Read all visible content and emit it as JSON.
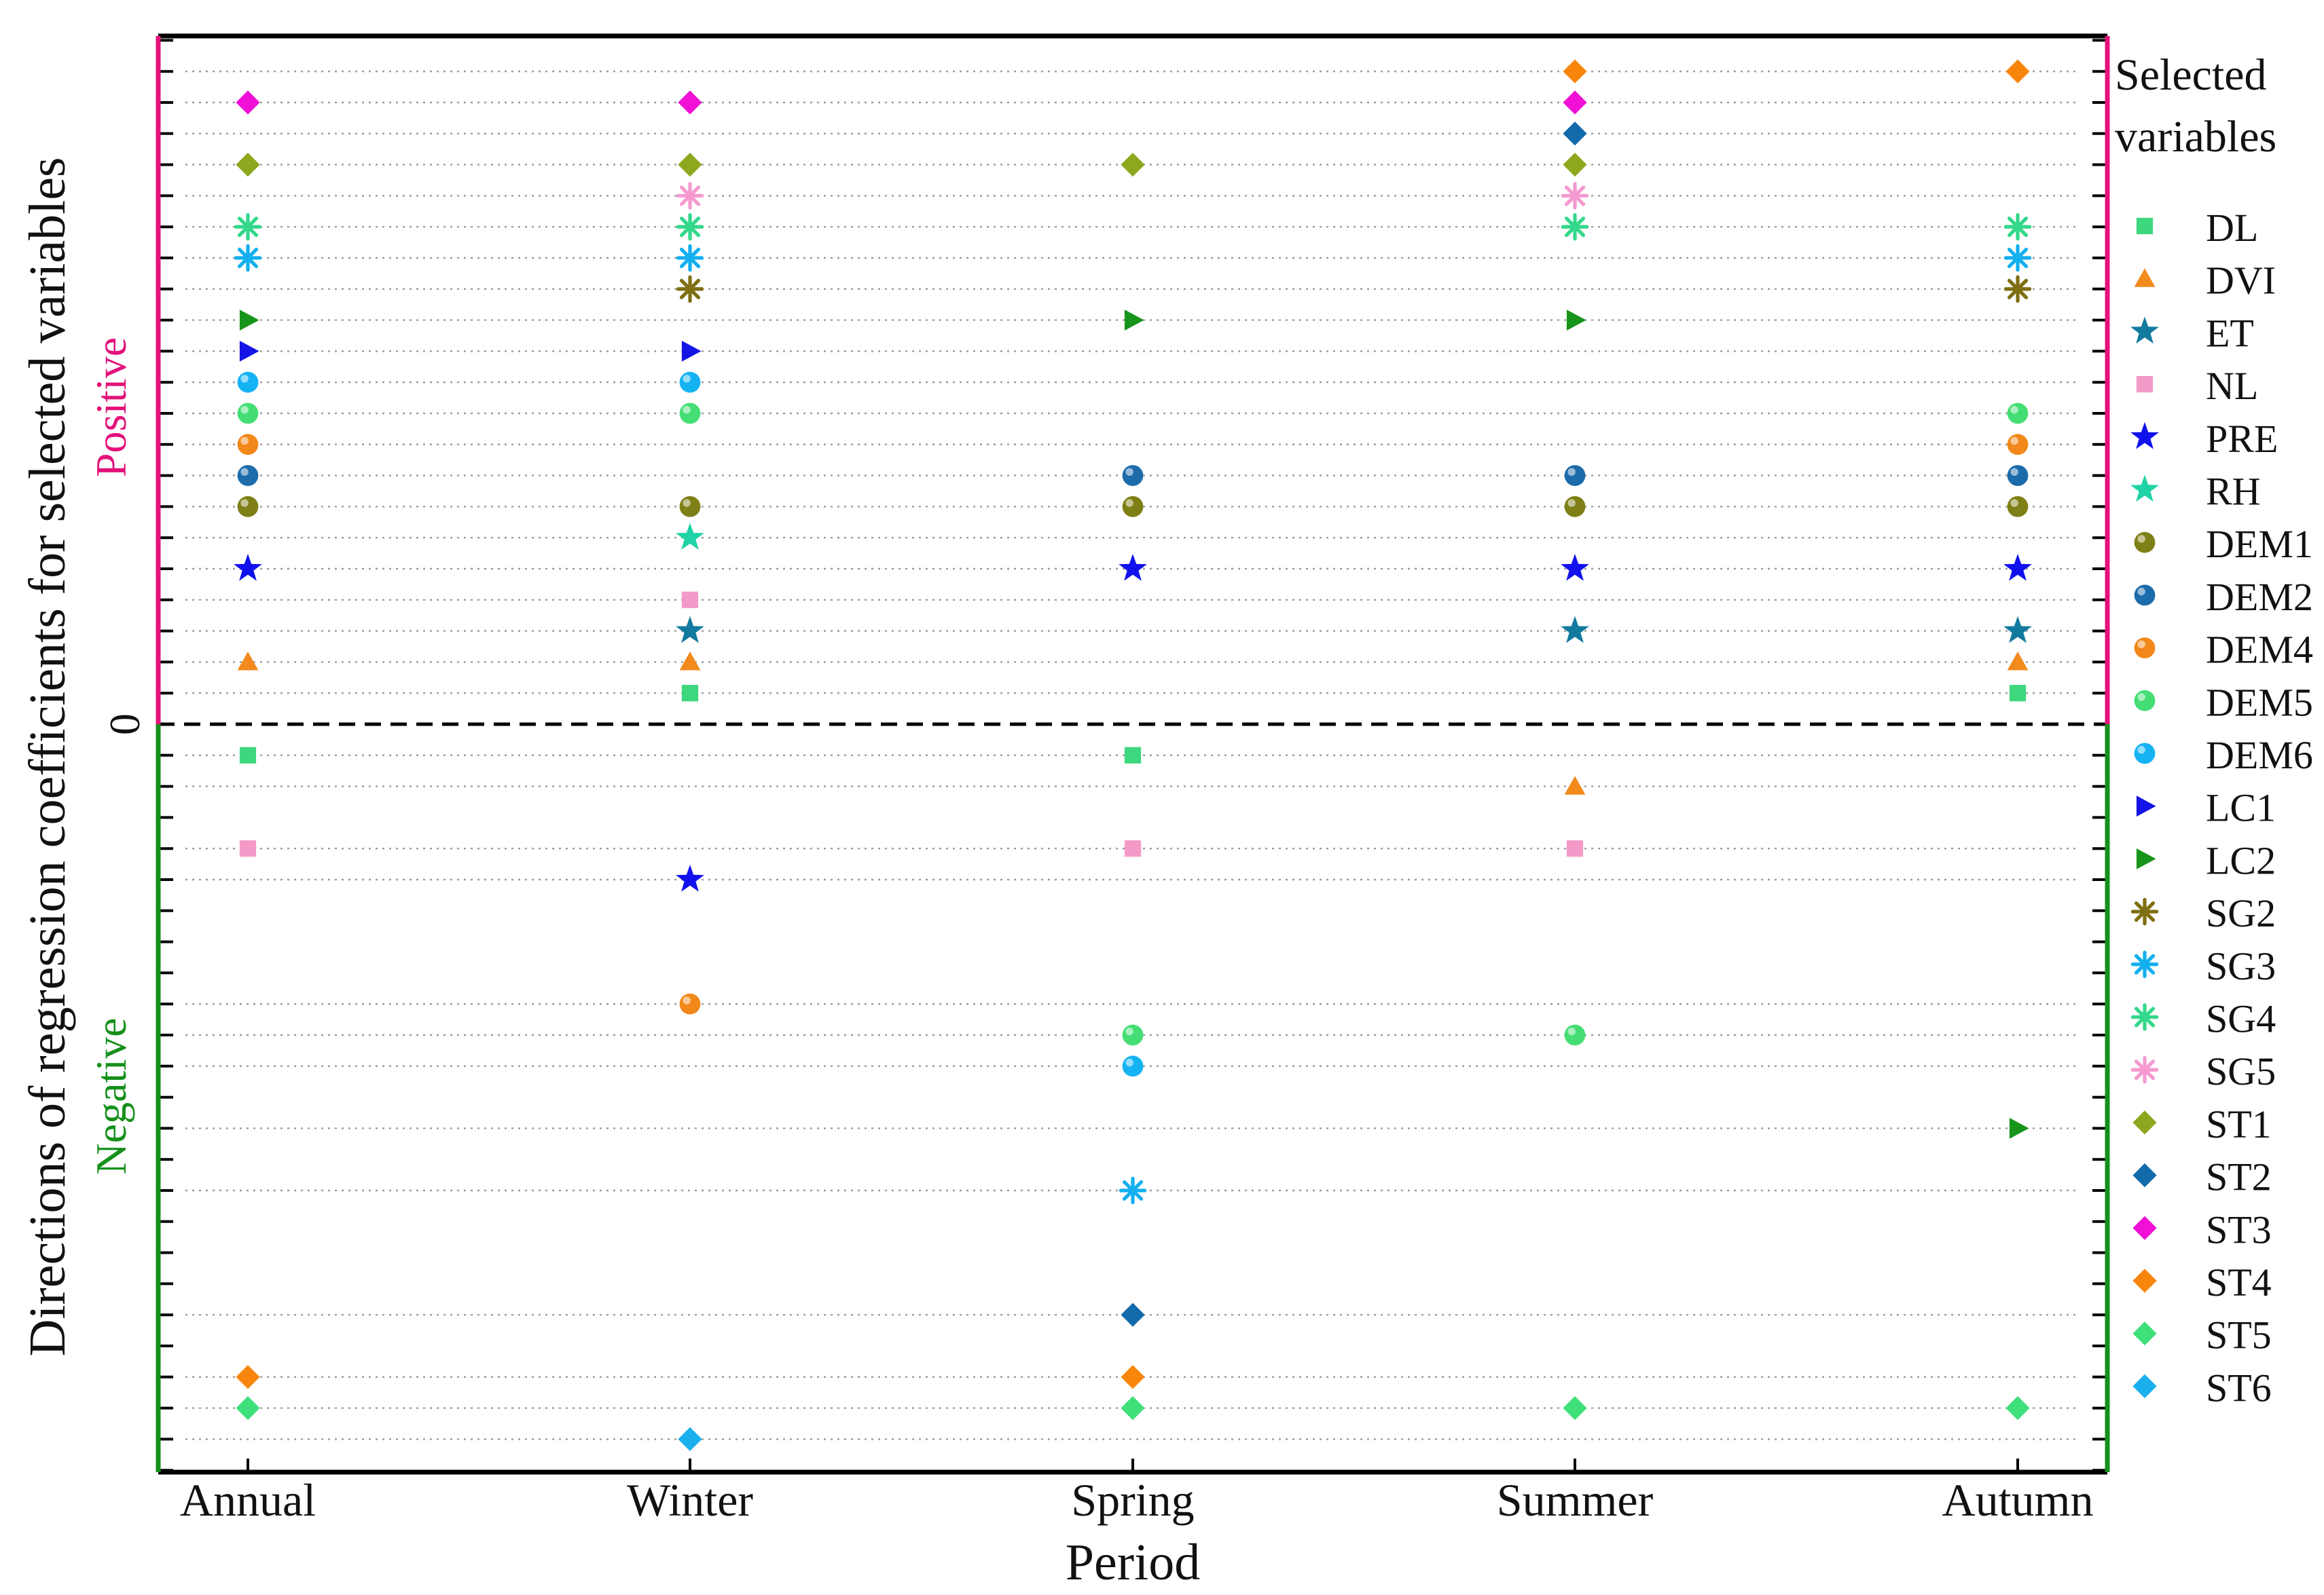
{
  "chart_data": {
    "type": "scatter",
    "title": "",
    "xlabel": "Period",
    "ylabel": "Directions of regression coefficients for selected variables",
    "categories": [
      "Annual",
      "Winter",
      "Spring",
      "Summer",
      "Autumn"
    ],
    "zero_label": "0",
    "positive_label": "Positive",
    "negative_label": "Negative",
    "legend_title_line1": "Selected",
    "legend_title_line2": "variables",
    "legend_position": "right",
    "grid": "dotted horizontal at each variable level",
    "ylim": [
      -24,
      22
    ],
    "positive_color": "#E4117A",
    "negative_color": "#15901A",
    "series": [
      {
        "name": "DL",
        "marker": "square",
        "color": "#3DD77E",
        "values": [
          -1,
          1,
          -1,
          null,
          1
        ]
      },
      {
        "name": "DVI",
        "marker": "triangle",
        "color": "#F28A1E",
        "values": [
          2,
          2,
          null,
          -2,
          2
        ]
      },
      {
        "name": "ET",
        "marker": "star",
        "color": "#137A9F",
        "values": [
          null,
          3,
          null,
          3,
          3
        ]
      },
      {
        "name": "NL",
        "marker": "square",
        "color": "#F49AC8",
        "values": [
          -4,
          4,
          -4,
          -4,
          null
        ]
      },
      {
        "name": "PRE",
        "marker": "star",
        "color": "#1111EE",
        "values": [
          5,
          -5,
          5,
          5,
          5
        ]
      },
      {
        "name": "RH",
        "marker": "star",
        "color": "#1FD3A6",
        "values": [
          null,
          6,
          null,
          null,
          null
        ]
      },
      {
        "name": "DEM1",
        "marker": "sphere",
        "color": "#7F7F17",
        "values": [
          7,
          7,
          7,
          7,
          7
        ]
      },
      {
        "name": "DEM2",
        "marker": "sphere",
        "color": "#1C6BAA",
        "values": [
          8,
          null,
          8,
          8,
          8
        ]
      },
      {
        "name": "DEM4",
        "marker": "sphere",
        "color": "#F2881A",
        "values": [
          9,
          -9,
          null,
          null,
          9
        ]
      },
      {
        "name": "DEM5",
        "marker": "sphere",
        "color": "#44DE74",
        "values": [
          10,
          10,
          -10,
          -10,
          10
        ]
      },
      {
        "name": "DEM6",
        "marker": "sphere",
        "color": "#16B3F2",
        "values": [
          11,
          11,
          -11,
          null,
          null
        ]
      },
      {
        "name": "LC1",
        "marker": "triright",
        "color": "#1414E6",
        "values": [
          12,
          12,
          null,
          null,
          null
        ]
      },
      {
        "name": "LC2",
        "marker": "triright",
        "color": "#17941A",
        "values": [
          13,
          null,
          13,
          13,
          -13
        ]
      },
      {
        "name": "SG2",
        "marker": "asterisk",
        "color": "#7F6E12",
        "values": [
          null,
          14,
          null,
          null,
          14
        ]
      },
      {
        "name": "SG3",
        "marker": "asterisk",
        "color": "#13AFEE",
        "values": [
          15,
          15,
          -15,
          null,
          15
        ]
      },
      {
        "name": "SG4",
        "marker": "asterisk",
        "color": "#33D88A",
        "values": [
          16,
          16,
          null,
          16,
          16
        ]
      },
      {
        "name": "SG5",
        "marker": "asterisk",
        "color": "#F59AD0",
        "values": [
          null,
          17,
          null,
          17,
          null
        ]
      },
      {
        "name": "ST1",
        "marker": "diamond",
        "color": "#8DA81E",
        "values": [
          18,
          18,
          18,
          18,
          null
        ]
      },
      {
        "name": "ST2",
        "marker": "diamond",
        "color": "#136AAA",
        "values": [
          null,
          null,
          -19,
          19,
          null
        ]
      },
      {
        "name": "ST3",
        "marker": "diamond",
        "color": "#F010D6",
        "values": [
          20,
          20,
          null,
          20,
          null
        ]
      },
      {
        "name": "ST4",
        "marker": "diamond",
        "color": "#F8860C",
        "values": [
          -21,
          null,
          -21,
          21,
          21
        ]
      },
      {
        "name": "ST5",
        "marker": "diamond",
        "color": "#3FE07A",
        "values": [
          -22,
          null,
          -22,
          -22,
          -22
        ]
      },
      {
        "name": "ST6",
        "marker": "diamond",
        "color": "#1AB0EE",
        "values": [
          null,
          -23,
          null,
          null,
          null
        ]
      }
    ]
  }
}
